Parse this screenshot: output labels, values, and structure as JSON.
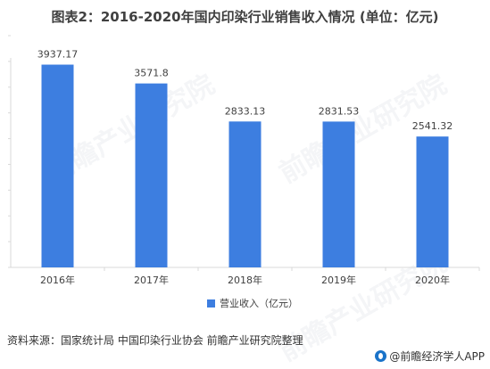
{
  "chart_title": "图表2：2016-2020年国内印染行业销售收入情况 (单位：亿元)",
  "watermark_text": "前瞻产业研究院",
  "source_note": "资料来源：国家统计局 中国印染行业协会 前瞻产业研究院整理",
  "brand": {
    "icon": "qianzhan-logo-icon",
    "name": "@前瞻经济学人APP"
  },
  "colors": {
    "bar": "#3d7ee0",
    "axis": "#d9d9d9",
    "text": "#404040"
  },
  "chart_data": {
    "type": "bar",
    "title": "图表2：2016-2020年国内印染行业销售收入情况 (单位：亿元)",
    "categories": [
      "2016年",
      "2017年",
      "2018年",
      "2019年",
      "2020年"
    ],
    "series": [
      {
        "name": "营业收入（亿元）",
        "values": [
          3937.17,
          3571.8,
          2833.13,
          2831.53,
          2541.32
        ]
      }
    ],
    "value_labels": [
      "3937.17",
      "3571.8",
      "2833.13",
      "2831.53",
      "2541.32"
    ],
    "ylim": [
      0,
      4500
    ],
    "y_axis_labels_shown": false,
    "grid": false,
    "legend_position": "bottom"
  }
}
